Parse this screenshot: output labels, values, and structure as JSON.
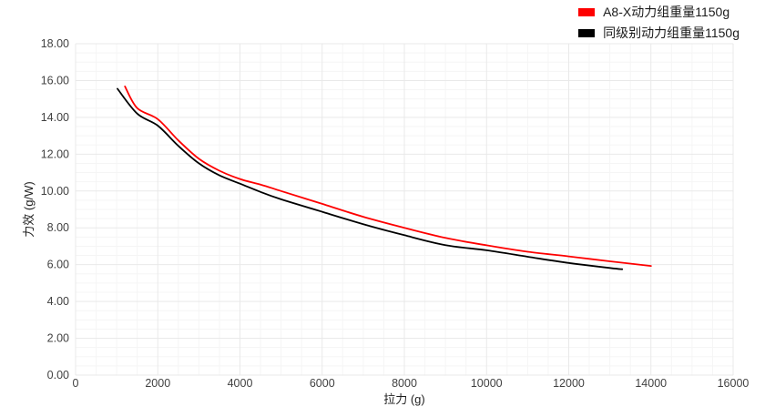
{
  "chart_data": {
    "type": "line",
    "title": "",
    "xlabel": "拉力 (g)",
    "ylabel": "力效 (g/W)",
    "xlim": [
      0,
      16000
    ],
    "ylim": [
      0,
      18
    ],
    "x_tick_step": 2000,
    "y_tick_step": 2,
    "x_minor_step": 500,
    "y_minor_step": 0.5,
    "x_ticks": [
      "0",
      "2000",
      "4000",
      "6000",
      "8000",
      "10000",
      "12000",
      "14000",
      "16000"
    ],
    "y_ticks": [
      "0.00",
      "2.00",
      "4.00",
      "6.00",
      "8.00",
      "10.00",
      "12.00",
      "14.00",
      "16.00",
      "18.00"
    ],
    "grid": true,
    "legend_position": "top-right",
    "colors": {
      "major_grid": "#e9e9e9",
      "minor_grid": "#f5f5f5",
      "tick_text": "#424242",
      "series_red": "#fe0000",
      "series_black": "#000000"
    },
    "series": [
      {
        "name": "A8-X动力组重量1150g",
        "color": "#fe0000",
        "points": [
          [
            1200,
            15.68
          ],
          [
            1500,
            14.5
          ],
          [
            2000,
            13.9
          ],
          [
            2500,
            12.75
          ],
          [
            3000,
            11.75
          ],
          [
            3500,
            11.1
          ],
          [
            4000,
            10.65
          ],
          [
            4500,
            10.35
          ],
          [
            5000,
            10.0
          ],
          [
            6000,
            9.3
          ],
          [
            7000,
            8.6
          ],
          [
            8000,
            8.0
          ],
          [
            9000,
            7.45
          ],
          [
            10000,
            7.05
          ],
          [
            11000,
            6.7
          ],
          [
            12000,
            6.45
          ],
          [
            13000,
            6.18
          ],
          [
            14000,
            5.93
          ]
        ]
      },
      {
        "name": "同级别动力组重量1150g",
        "color": "#000000",
        "points": [
          [
            1020,
            15.55
          ],
          [
            1500,
            14.2
          ],
          [
            2000,
            13.55
          ],
          [
            2500,
            12.45
          ],
          [
            3000,
            11.5
          ],
          [
            3500,
            10.85
          ],
          [
            4000,
            10.4
          ],
          [
            4500,
            9.95
          ],
          [
            5000,
            9.55
          ],
          [
            6000,
            8.87
          ],
          [
            7000,
            8.2
          ],
          [
            8000,
            7.6
          ],
          [
            9000,
            7.06
          ],
          [
            10000,
            6.78
          ],
          [
            11000,
            6.43
          ],
          [
            12000,
            6.09
          ],
          [
            13000,
            5.82
          ],
          [
            13300,
            5.75
          ]
        ]
      }
    ]
  }
}
